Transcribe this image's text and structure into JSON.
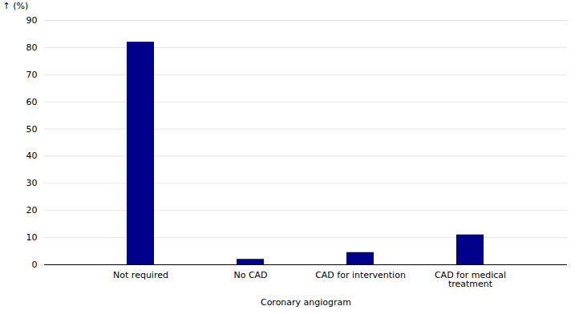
{
  "chart_data": {
    "type": "bar",
    "categories": [
      "Not required",
      "No CAD",
      "CAD for intervention",
      "CAD for medical\ntreatment"
    ],
    "values": [
      82,
      2,
      4.5,
      11
    ],
    "color": "#00008B",
    "xlabel": "Coronary angiogram",
    "ylabel": "(%)",
    "ylim": [
      0,
      90
    ],
    "yticks": [
      0,
      10,
      20,
      30,
      40,
      50,
      60,
      70,
      80,
      90
    ],
    "grid": true
  }
}
